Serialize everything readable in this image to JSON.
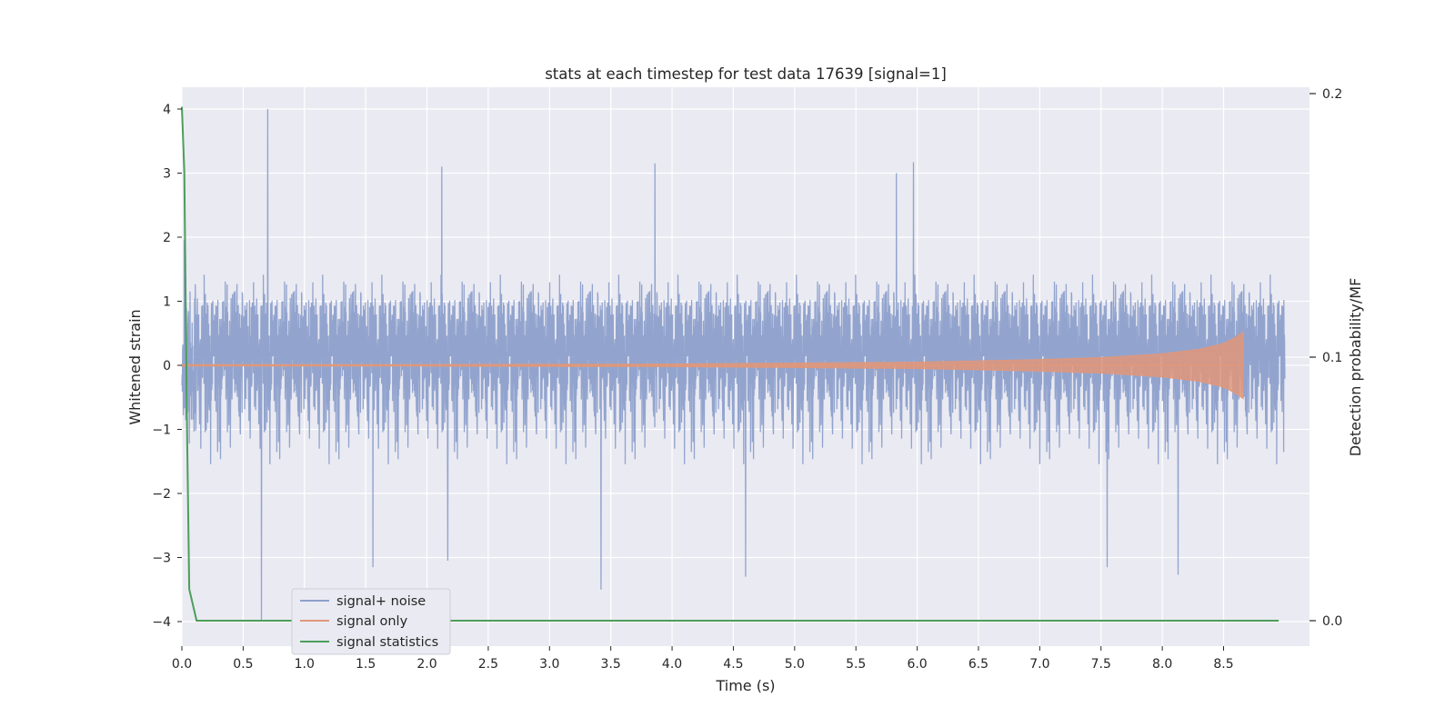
{
  "chart_data": {
    "type": "line",
    "title": "stats at each timestep for test data 17639 [signal=1]",
    "xlabel": "Time (s)",
    "ylabel": "Whitened strain",
    "y2label": "Detection probability/MF",
    "xlim": [
      0.0,
      9.0
    ],
    "ylim": [
      -4.4,
      4.35
    ],
    "y2lim": [
      -0.009,
      0.203
    ],
    "xticks": [
      "0.0",
      "0.5",
      "1.0",
      "1.5",
      "2.0",
      "2.5",
      "3.0",
      "3.5",
      "4.0",
      "4.5",
      "5.0",
      "5.5",
      "6.0",
      "6.5",
      "7.0",
      "7.5",
      "8.0",
      "8.5"
    ],
    "yticks": [
      "4",
      "3",
      "2",
      "1",
      "0",
      "−1",
      "−2",
      "−3",
      "−4"
    ],
    "y2ticks": [
      "0.2",
      "0.1",
      "0.0"
    ],
    "grid": true,
    "legend_position": "lower-left",
    "colors": {
      "noise": "#8da0cb",
      "signal": "#e0977a",
      "stats": "#4c9e5a",
      "plot_bg": "#eaeaf2",
      "grid": "#ffffff"
    },
    "series": [
      {
        "name": "signal+ noise",
        "kind": "white noise, approx unit variance",
        "amplitude_range": [
          -4.0,
          4.0
        ],
        "x_range": [
          0.0,
          9.0
        ],
        "peaks": [
          {
            "x": 0.7,
            "y": 4.0
          },
          {
            "x": 0.65,
            "y": -4.0
          },
          {
            "x": 2.12,
            "y": 3.1
          },
          {
            "x": 3.86,
            "y": 3.15
          },
          {
            "x": 5.97,
            "y": 3.17
          },
          {
            "x": 5.83,
            "y": 3.0
          },
          {
            "x": 3.42,
            "y": -3.5
          },
          {
            "x": 4.6,
            "y": -3.3
          },
          {
            "x": 8.13,
            "y": -3.27
          },
          {
            "x": 1.56,
            "y": -3.15
          },
          {
            "x": 2.17,
            "y": -3.05
          },
          {
            "x": 7.55,
            "y": -3.15
          }
        ]
      },
      {
        "name": "signal only",
        "kind": "chirp",
        "envelope": [
          {
            "t": 0.0,
            "a": 0.01
          },
          {
            "t": 2.0,
            "a": 0.012
          },
          {
            "t": 4.0,
            "a": 0.02
          },
          {
            "t": 6.0,
            "a": 0.05
          },
          {
            "t": 7.0,
            "a": 0.09
          },
          {
            "t": 7.5,
            "a": 0.12
          },
          {
            "t": 8.0,
            "a": 0.18
          },
          {
            "t": 8.3,
            "a": 0.25
          },
          {
            "t": 8.5,
            "a": 0.34
          },
          {
            "t": 8.6,
            "a": 0.44
          },
          {
            "t": 8.66,
            "a": 0.52
          }
        ],
        "end_time": 8.67
      },
      {
        "name": "signal statistics",
        "axis": "y2",
        "x": [
          0.0,
          0.02,
          0.04,
          0.06,
          0.12,
          0.5,
          1.0,
          2.0,
          3.0,
          4.0,
          5.0,
          6.0,
          7.0,
          8.0,
          8.95
        ],
        "values": [
          0.195,
          0.17,
          0.08,
          0.012,
          0.0,
          0.0,
          0.0,
          0.0,
          0.0,
          0.0,
          0.0,
          0.0,
          0.0,
          0.0,
          0.0
        ]
      }
    ]
  }
}
